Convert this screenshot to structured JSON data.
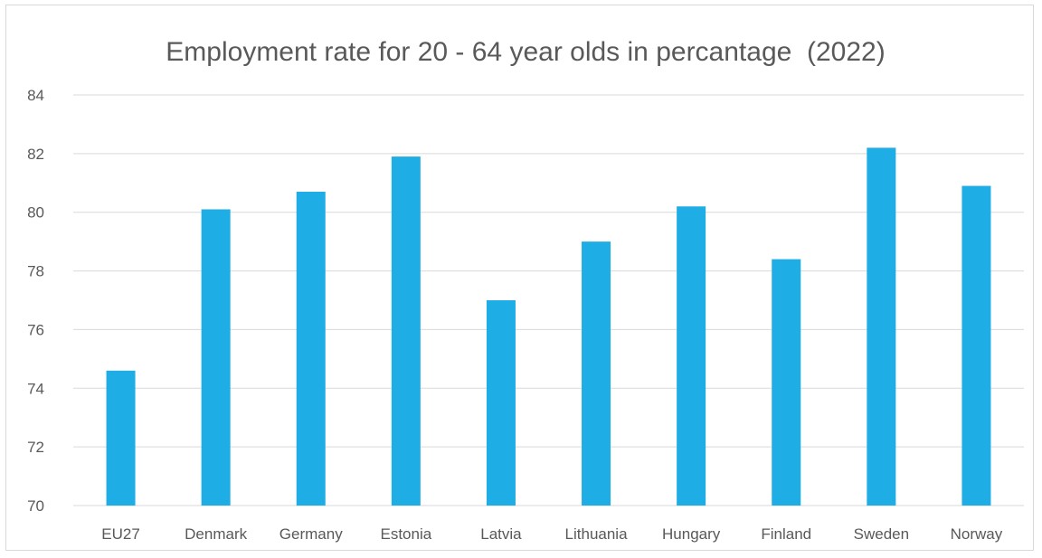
{
  "chart_data": {
    "type": "bar",
    "title": "Employment rate for 20 - 64 year olds in percantage  (2022)",
    "xlabel": "",
    "ylabel": "",
    "categories": [
      "EU27",
      "Denmark",
      "Germany",
      "Estonia",
      "Latvia",
      "Lithuania",
      "Hungary",
      "Finland",
      "Sweden",
      "Norway"
    ],
    "values": [
      74.6,
      80.1,
      80.7,
      81.9,
      77.0,
      79.0,
      80.2,
      78.4,
      82.2,
      80.9
    ],
    "ylim": [
      70,
      84
    ],
    "yticks": [
      70,
      72,
      74,
      76,
      78,
      80,
      82,
      84
    ],
    "grid": true,
    "legend": "none",
    "bar_color": "#1EADE4"
  }
}
